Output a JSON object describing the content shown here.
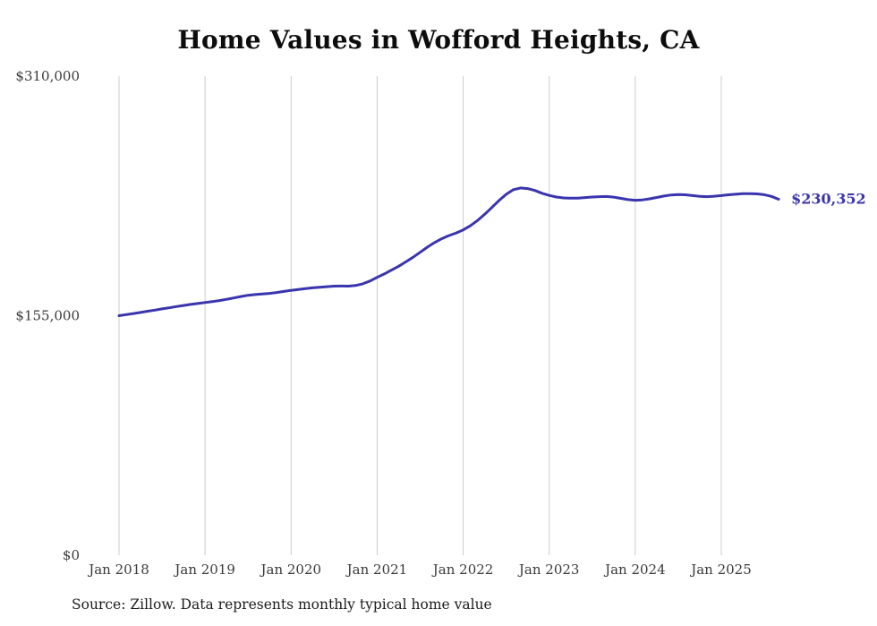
{
  "chart_data": {
    "type": "line",
    "title": "Home Values in Wofford Heights, CA",
    "source": "Source: Zillow. Data represents monthly typical home value",
    "end_label": "$230,352",
    "final_value": 230352,
    "line_color": "#3a35ae",
    "grid_color": "#cccccc",
    "ylim": [
      0,
      310000
    ],
    "y_ticks": [
      {
        "label": "$0",
        "value": 0
      },
      {
        "label": "$155,000",
        "value": 155000
      },
      {
        "label": "$310,000",
        "value": 310000
      }
    ],
    "x_tick_labels": [
      "Jan 2018",
      "Jan 2019",
      "Jan 2020",
      "Jan 2021",
      "Jan 2022",
      "Jan 2023",
      "Jan 2024",
      "Jan 2025"
    ],
    "x_tick_month_index": [
      0,
      12,
      24,
      36,
      48,
      60,
      72,
      84
    ],
    "x_start": "Jan 2018",
    "x_end": "Sep 2025",
    "values": [
      155000,
      155700,
      156400,
      157100,
      157900,
      158600,
      159400,
      160100,
      160900,
      161600,
      162300,
      162900,
      163500,
      164100,
      164800,
      165600,
      166500,
      167400,
      168200,
      168700,
      169000,
      169400,
      170000,
      170700,
      171400,
      172000,
      172500,
      173000,
      173400,
      173800,
      174100,
      174200,
      174100,
      174500,
      175600,
      177400,
      179800,
      182000,
      184500,
      187000,
      189800,
      192800,
      196000,
      199300,
      202300,
      204800,
      206800,
      208500,
      210500,
      213200,
      216600,
      220600,
      225000,
      229500,
      233500,
      236500,
      237600,
      237200,
      236000,
      234200,
      232800,
      231800,
      231200,
      231000,
      231100,
      231400,
      231800,
      232000,
      232100,
      231700,
      230900,
      230100,
      229700,
      229900,
      230600,
      231500,
      232400,
      233100,
      233400,
      233200,
      232700,
      232200,
      232000,
      232300,
      232700,
      233200,
      233600,
      233900,
      234000,
      233800,
      233300,
      232200,
      230352
    ]
  }
}
